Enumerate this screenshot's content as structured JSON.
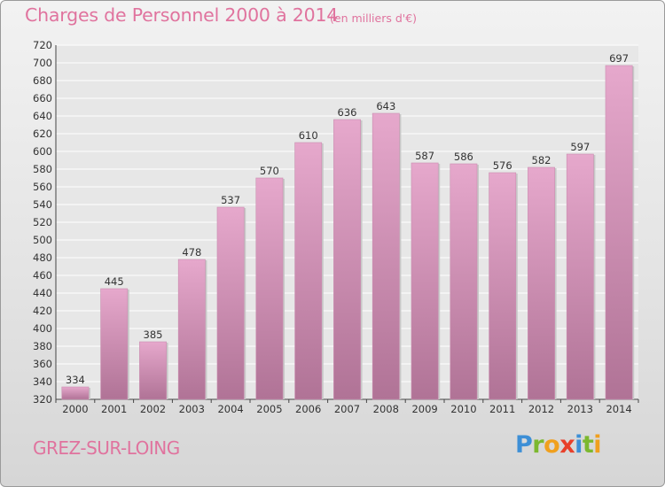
{
  "header": {
    "title": "Charges de Personnel 2000 à 2014",
    "subtitle": "(en milliers d'€)"
  },
  "footer": {
    "town": "GREZ-SUR-LOING",
    "logo": [
      "P",
      "r",
      "o",
      "x",
      "i",
      "t",
      "i"
    ]
  },
  "colors": {
    "bar_top": "#e6a8cc",
    "bar_bottom": "#b07396",
    "text_accent": "#e0739e",
    "grid": "#ffffff"
  },
  "chart_data": {
    "type": "bar",
    "title": "Charges de Personnel 2000 à 2014",
    "subtitle": "(en milliers d'€)",
    "categories": [
      "2000",
      "2001",
      "2002",
      "2003",
      "2004",
      "2005",
      "2006",
      "2007",
      "2008",
      "2009",
      "2010",
      "2011",
      "2012",
      "2013",
      "2014"
    ],
    "values": [
      334,
      445,
      385,
      478,
      537,
      570,
      610,
      636,
      643,
      587,
      586,
      576,
      582,
      597,
      697
    ],
    "ylim": [
      320,
      720
    ],
    "yticks": [
      320,
      340,
      360,
      380,
      400,
      420,
      440,
      460,
      480,
      500,
      520,
      540,
      560,
      580,
      600,
      620,
      640,
      660,
      680,
      700,
      720
    ],
    "grid": true,
    "xlabel": "",
    "ylabel": ""
  }
}
